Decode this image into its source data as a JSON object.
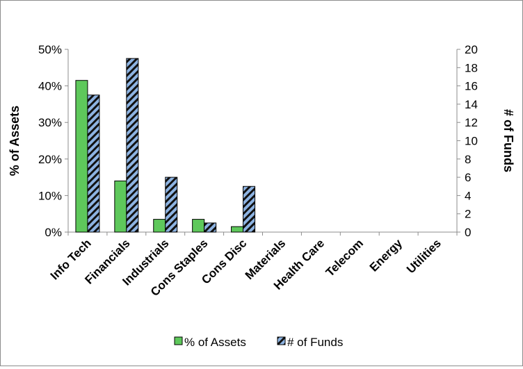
{
  "chart_data": {
    "type": "bar",
    "categories": [
      "Info Tech",
      "Financials",
      "Industrials",
      "Cons Staples",
      "Cons Disc",
      "Materials",
      "Health Care",
      "Telecom",
      "Energy",
      "Utilities"
    ],
    "series": [
      {
        "name": "% of Assets",
        "axis": "left",
        "values": [
          41.5,
          14,
          3.5,
          3.5,
          1.5,
          0,
          0,
          0,
          0,
          0
        ],
        "color": "#5ec85b"
      },
      {
        "name": "# of Funds",
        "axis": "right",
        "values": [
          15,
          19,
          6,
          1,
          5,
          0,
          0,
          0,
          0,
          0
        ],
        "color": "#8db3e2",
        "pattern": "diagonal-stripes-black"
      }
    ],
    "ylabel_left": "% of Assets",
    "ylabel_right": "# of Funds",
    "ylim_left": [
      0,
      50
    ],
    "ylim_right": [
      0,
      20
    ],
    "yticks_left": [
      "0%",
      "10%",
      "20%",
      "30%",
      "40%",
      "50%"
    ],
    "yticks_right": [
      "0",
      "2",
      "4",
      "6",
      "8",
      "10",
      "12",
      "14",
      "16",
      "18",
      "20"
    ],
    "legend": {
      "placement": "bottom",
      "items": [
        "% of Assets",
        "# of Funds"
      ]
    },
    "grid": false
  }
}
